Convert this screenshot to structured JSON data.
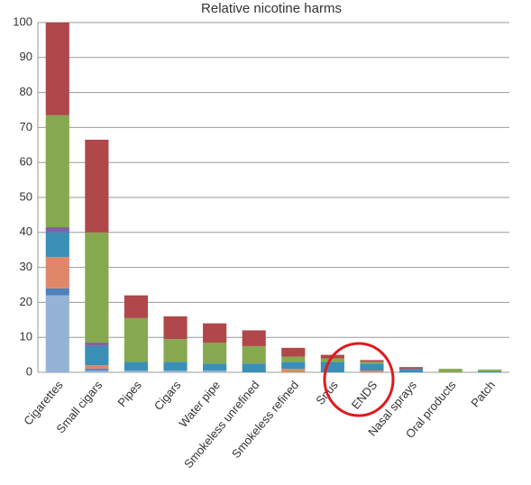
{
  "chart_data": {
    "type": "stacked-bar",
    "title": "Relative nicotine harms",
    "categories": [
      "Cigarettes",
      "Small cigars",
      "Pipes",
      "Cigars",
      "Water pipe",
      "Smokeless unrefined",
      "Smokeless refined",
      "Snus",
      "ENDS",
      "Nasal sprays",
      "Oral products",
      "Patch"
    ],
    "series": [
      {
        "color": "#95b3d7",
        "values": [
          22,
          0.5,
          0.5,
          0.5,
          0.5,
          0,
          0,
          0,
          0,
          0,
          0,
          0
        ]
      },
      {
        "color": "#4f81bd",
        "values": [
          2,
          0.5,
          0,
          0,
          0,
          0,
          0,
          0,
          0,
          0,
          0,
          0
        ]
      },
      {
        "color": "#e0876a",
        "values": [
          9,
          1,
          0,
          0,
          0,
          0,
          1,
          0,
          0.5,
          0,
          0,
          0
        ]
      },
      {
        "color": "#3a8fb7",
        "values": [
          7,
          5.5,
          2.5,
          2.5,
          2,
          2.5,
          2,
          3,
          2,
          1,
          0,
          0.3
        ]
      },
      {
        "color": "#8064a2",
        "values": [
          1.5,
          1,
          0,
          0,
          0,
          0,
          0,
          0,
          0,
          0,
          0,
          0
        ]
      },
      {
        "color": "#86a94f",
        "values": [
          32,
          31.5,
          12.5,
          6.5,
          6,
          5,
          1.5,
          1,
          0.5,
          0,
          1,
          0.5
        ]
      },
      {
        "color": "#b0474a",
        "values": [
          26.5,
          26.5,
          6.5,
          6.5,
          5.5,
          4.5,
          2.5,
          1,
          0.5,
          0.5,
          0,
          0
        ]
      }
    ],
    "ylim": [
      0,
      100
    ],
    "yticks": [
      0,
      10,
      20,
      30,
      40,
      50,
      60,
      70,
      80,
      90,
      100
    ],
    "grid": true
  }
}
